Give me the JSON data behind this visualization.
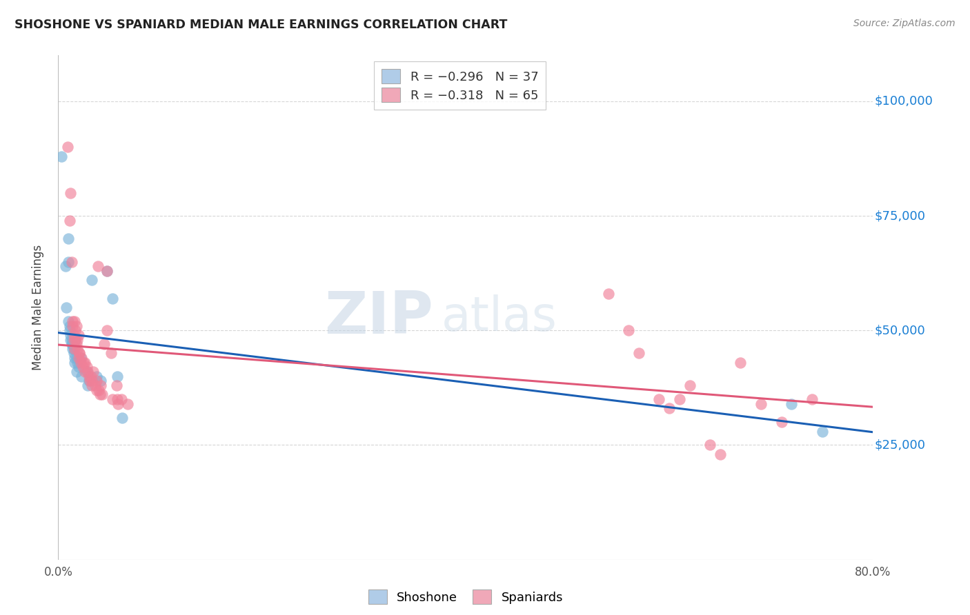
{
  "title": "SHOSHONE VS SPANIARD MEDIAN MALE EARNINGS CORRELATION CHART",
  "source": "Source: ZipAtlas.com",
  "ylabel": "Median Male Earnings",
  "background_color": "#ffffff",
  "grid_color": "#cccccc",
  "xlim": [
    0.0,
    0.8
  ],
  "ylim": [
    0,
    110000
  ],
  "yticks": [
    25000,
    50000,
    75000,
    100000
  ],
  "ytick_labels": [
    "$25,000",
    "$50,000",
    "$75,000",
    "$100,000"
  ],
  "xtick_positions": [
    0.0,
    0.1,
    0.2,
    0.3,
    0.4,
    0.5,
    0.6,
    0.7,
    0.8
  ],
  "xtick_labels": [
    "0.0%",
    "",
    "",
    "",
    "",
    "",
    "",
    "",
    "80.0%"
  ],
  "shoshone_color": "#7ab3d9",
  "spaniard_color": "#f08098",
  "shoshone_line_color": "#1a5fb4",
  "spaniard_line_color": "#e05878",
  "shoshone_points": [
    [
      0.003,
      88000
    ],
    [
      0.007,
      64000
    ],
    [
      0.01,
      70000
    ],
    [
      0.008,
      55000
    ],
    [
      0.01,
      65000
    ],
    [
      0.01,
      52000
    ],
    [
      0.011,
      51000
    ],
    [
      0.011,
      50000
    ],
    [
      0.012,
      49000
    ],
    [
      0.012,
      48000
    ],
    [
      0.013,
      48000
    ],
    [
      0.013,
      47000
    ],
    [
      0.014,
      46000
    ],
    [
      0.014,
      47000
    ],
    [
      0.015,
      45000
    ],
    [
      0.015,
      46000
    ],
    [
      0.016,
      44000
    ],
    [
      0.016,
      43000
    ],
    [
      0.017,
      48000
    ],
    [
      0.018,
      44000
    ],
    [
      0.018,
      41000
    ],
    [
      0.019,
      43000
    ],
    [
      0.02,
      42000
    ],
    [
      0.022,
      44000
    ],
    [
      0.023,
      40000
    ],
    [
      0.028,
      41000
    ],
    [
      0.029,
      38000
    ],
    [
      0.03,
      39000
    ],
    [
      0.033,
      61000
    ],
    [
      0.038,
      40000
    ],
    [
      0.042,
      39000
    ],
    [
      0.048,
      63000
    ],
    [
      0.053,
      57000
    ],
    [
      0.058,
      40000
    ],
    [
      0.063,
      31000
    ],
    [
      0.72,
      34000
    ],
    [
      0.75,
      28000
    ]
  ],
  "spaniard_points": [
    [
      0.009,
      90000
    ],
    [
      0.011,
      74000
    ],
    [
      0.013,
      65000
    ],
    [
      0.012,
      80000
    ],
    [
      0.014,
      52000
    ],
    [
      0.014,
      51000
    ],
    [
      0.015,
      49000
    ],
    [
      0.015,
      48000
    ],
    [
      0.016,
      46000
    ],
    [
      0.016,
      52000
    ],
    [
      0.017,
      50000
    ],
    [
      0.017,
      48000
    ],
    [
      0.018,
      47000
    ],
    [
      0.018,
      51000
    ],
    [
      0.019,
      46000
    ],
    [
      0.019,
      48000
    ],
    [
      0.02,
      49000
    ],
    [
      0.02,
      44000
    ],
    [
      0.021,
      45000
    ],
    [
      0.021,
      45000
    ],
    [
      0.022,
      43000
    ],
    [
      0.023,
      44000
    ],
    [
      0.024,
      42000
    ],
    [
      0.025,
      43000
    ],
    [
      0.026,
      43000
    ],
    [
      0.026,
      41000
    ],
    [
      0.028,
      42000
    ],
    [
      0.029,
      41000
    ],
    [
      0.03,
      40000
    ],
    [
      0.031,
      39000
    ],
    [
      0.032,
      40000
    ],
    [
      0.033,
      39000
    ],
    [
      0.033,
      38000
    ],
    [
      0.034,
      41000
    ],
    [
      0.036,
      38000
    ],
    [
      0.038,
      39000
    ],
    [
      0.038,
      37000
    ],
    [
      0.039,
      64000
    ],
    [
      0.04,
      37000
    ],
    [
      0.041,
      36000
    ],
    [
      0.042,
      38000
    ],
    [
      0.043,
      36000
    ],
    [
      0.045,
      47000
    ],
    [
      0.048,
      63000
    ],
    [
      0.048,
      50000
    ],
    [
      0.052,
      45000
    ],
    [
      0.053,
      35000
    ],
    [
      0.057,
      38000
    ],
    [
      0.058,
      35000
    ],
    [
      0.059,
      34000
    ],
    [
      0.062,
      35000
    ],
    [
      0.068,
      34000
    ],
    [
      0.54,
      58000
    ],
    [
      0.56,
      50000
    ],
    [
      0.57,
      45000
    ],
    [
      0.59,
      35000
    ],
    [
      0.6,
      33000
    ],
    [
      0.61,
      35000
    ],
    [
      0.62,
      38000
    ],
    [
      0.64,
      25000
    ],
    [
      0.65,
      23000
    ],
    [
      0.67,
      43000
    ],
    [
      0.69,
      34000
    ],
    [
      0.71,
      30000
    ],
    [
      0.74,
      35000
    ]
  ]
}
